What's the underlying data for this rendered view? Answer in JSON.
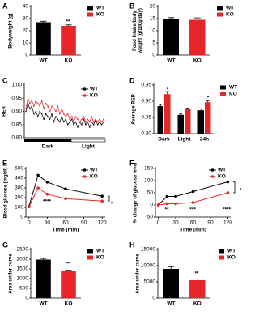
{
  "chart_data": [
    {
      "type": "bar",
      "label": "A",
      "ylabel": [
        "Bodyweight (g)"
      ],
      "categories": [
        "WT",
        "KO"
      ],
      "values": [
        27,
        24
      ],
      "errors": [
        0.8,
        0.8
      ],
      "colors": [
        "#000000",
        "#e8262a"
      ],
      "ylim": [
        0,
        40
      ],
      "yticks": [
        0,
        10,
        20,
        30,
        40
      ],
      "annotations": [
        "**"
      ]
    },
    {
      "type": "bar",
      "label": "B",
      "ylabel": [
        "Food Intake/body",
        "weight (g/100g/day)"
      ],
      "categories": [
        "WT",
        "KO"
      ],
      "values": [
        15,
        14.5
      ],
      "errors": [
        0.4,
        0.8
      ],
      "colors": [
        "#000000",
        "#e8262a"
      ],
      "ylim": [
        0,
        20
      ],
      "yticks": [
        0,
        5,
        10,
        15,
        20
      ],
      "annotations": []
    },
    {
      "type": "line",
      "label": "C",
      "ylabel": [
        "RER"
      ],
      "phases": [
        "Dark",
        "Light"
      ],
      "ylim": [
        0.8,
        1.0
      ],
      "yticks": [
        {
          "value": 0.8,
          "label": "0.80"
        },
        {
          "value": 0.85,
          "label": "0.85"
        },
        {
          "value": 0.9,
          "label": "0.90"
        },
        {
          "value": 0.95,
          "label": "0.95"
        },
        {
          "value": 1.0,
          "label": "1.00"
        }
      ],
      "series": [
        {
          "name": "WT",
          "color": "#000000",
          "values": [
            0.9,
            0.93,
            0.91,
            0.92,
            0.89,
            0.9,
            0.88,
            0.9,
            0.89,
            0.87,
            0.89,
            0.88,
            0.87,
            0.89,
            0.86,
            0.88,
            0.87,
            0.86,
            0.88,
            0.86,
            0.87,
            0.85,
            0.86,
            0.87,
            0.85,
            0.86,
            0.84,
            0.86,
            0.85,
            0.87,
            0.85,
            0.86,
            0.84,
            0.86,
            0.85,
            0.87,
            0.85,
            0.86,
            0.85,
            0.86
          ]
        },
        {
          "name": "KO",
          "color": "#e8262a",
          "values": [
            0.91,
            0.95,
            0.93,
            0.94,
            0.92,
            0.94,
            0.93,
            0.92,
            0.94,
            0.91,
            0.93,
            0.92,
            0.9,
            0.92,
            0.91,
            0.9,
            0.92,
            0.89,
            0.91,
            0.89,
            0.88,
            0.89,
            0.87,
            0.88,
            0.86,
            0.88,
            0.87,
            0.86,
            0.87,
            0.88,
            0.86,
            0.87,
            0.86,
            0.88,
            0.86,
            0.87,
            0.86,
            0.87,
            0.86,
            0.87
          ]
        }
      ],
      "annotations": []
    },
    {
      "type": "bar",
      "label": "D",
      "ylabel": [
        "Average RER"
      ],
      "categories": [
        "Dark",
        "Light",
        "24h"
      ],
      "ylim": [
        0.8,
        0.95
      ],
      "yticks": [
        {
          "value": 0.8,
          "label": "0.80"
        },
        {
          "value": 0.85,
          "label": "0.85"
        },
        {
          "value": 0.9,
          "label": "0.90"
        },
        {
          "value": 0.95,
          "label": "0.95"
        }
      ],
      "series": [
        {
          "name": "WT",
          "color": "#000000",
          "values": [
            0.885,
            0.858,
            0.872
          ],
          "errors": [
            0.005,
            0.004,
            0.004
          ]
        },
        {
          "name": "KO",
          "color": "#e8262a",
          "values": [
            0.922,
            0.875,
            0.897
          ],
          "errors": [
            0.008,
            0.004,
            0.005
          ]
        }
      ],
      "annotations": [
        "*",
        "*"
      ]
    },
    {
      "type": "line",
      "label": "E",
      "ylabel": [
        "Blood glucose (mg/dl)"
      ],
      "xlabel": "Time (min)",
      "x": [
        0,
        15,
        30,
        60,
        120
      ],
      "xlim": [
        -5,
        125
      ],
      "xticks": [
        0,
        30,
        60,
        90,
        120
      ],
      "ylim": [
        0,
        500
      ],
      "yticks": [
        0,
        100,
        200,
        300,
        400,
        500
      ],
      "series": [
        {
          "name": "WT",
          "color": "#000000",
          "values": [
            110,
            430,
            360,
            290,
            215
          ]
        },
        {
          "name": "KO",
          "color": "#e8262a",
          "values": [
            105,
            300,
            235,
            190,
            165
          ]
        }
      ],
      "annotations": [
        "****",
        "*"
      ]
    },
    {
      "type": "line",
      "label": "F",
      "ylabel": [
        "% change of glucose level"
      ],
      "xlabel": "Time (min)",
      "x": [
        0,
        15,
        30,
        60,
        120
      ],
      "xlim": [
        -5,
        125
      ],
      "xticks": [
        0,
        30,
        60,
        90,
        120
      ],
      "ylim": [
        -50,
        150
      ],
      "yticks": [
        -50,
        0,
        50,
        100,
        150
      ],
      "series": [
        {
          "name": "WT",
          "color": "#000000",
          "values": [
            0,
            35,
            35,
            55,
            95
          ]
        },
        {
          "name": "KO",
          "color": "#e8262a",
          "values": [
            0,
            5,
            5,
            10,
            50
          ]
        }
      ],
      "annotations": [
        "**",
        "***",
        "****",
        "*"
      ]
    },
    {
      "type": "bar",
      "label": "G",
      "ylabel": [
        "Area under curve"
      ],
      "categories": [
        "WT",
        "KO"
      ],
      "values": [
        1980,
        1380
      ],
      "errors": [
        60,
        50
      ],
      "colors": [
        "#000000",
        "#e8262a"
      ],
      "ylim": [
        0,
        2500
      ],
      "yticks": [
        0,
        500,
        1000,
        1500,
        2000,
        2500
      ],
      "annotations": [
        "***"
      ]
    },
    {
      "type": "bar",
      "label": "H",
      "ylabel": [
        "Area under curve"
      ],
      "categories": [
        "WT",
        "KO"
      ],
      "values": [
        9000,
        5500
      ],
      "errors": [
        700,
        400
      ],
      "colors": [
        "#000000",
        "#e8262a"
      ],
      "ylim": [
        0,
        15000
      ],
      "yticks": [
        0,
        5000,
        10000,
        15000
      ],
      "annotations": [
        "**"
      ]
    }
  ]
}
